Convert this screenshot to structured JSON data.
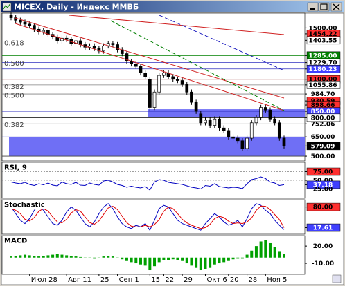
{
  "window": {
    "title": "MICEX, Daily - Индекс ММВБ"
  },
  "chart_data": [
    {
      "type": "candlestick",
      "categories": [
        null,
        null,
        null,
        null,
        "Июл 28",
        null,
        null,
        null,
        null,
        null,
        null,
        null,
        "Авг 11",
        null,
        null,
        null,
        null,
        null,
        null,
        "25",
        null,
        null,
        null,
        "Сен 1",
        null,
        null,
        null,
        null,
        null,
        null,
        "15",
        null,
        null,
        "22",
        null,
        null,
        null,
        "29",
        null,
        null,
        null,
        null,
        "Окт 6",
        null,
        null,
        null,
        null,
        "20",
        null,
        null,
        null,
        "28",
        null,
        null,
        null,
        "Ноя 5",
        null,
        null,
        null,
        null
      ],
      "open": [
        1600,
        1580,
        1560,
        1545,
        1530,
        1520,
        1490,
        1470,
        1480,
        1450,
        1430,
        1400,
        1420,
        1410,
        1380,
        1400,
        1370,
        1350,
        1360,
        1340,
        1320,
        1360,
        1380,
        1370,
        1330,
        1300,
        1240,
        1220,
        1200,
        1150,
        1100,
        880,
        1000,
        1130,
        1150,
        1120,
        1100,
        1090,
        1060,
        1000,
        920,
        830,
        760,
        780,
        740,
        790,
        720,
        700,
        650,
        640,
        620,
        560,
        640,
        760,
        800,
        880,
        860,
        790,
        760,
        640
      ],
      "high": [
        1620,
        1600,
        1580,
        1565,
        1550,
        1540,
        1510,
        1500,
        1500,
        1470,
        1450,
        1440,
        1440,
        1430,
        1420,
        1420,
        1390,
        1380,
        1380,
        1360,
        1380,
        1400,
        1400,
        1390,
        1350,
        1320,
        1260,
        1240,
        1220,
        1170,
        1120,
        1020,
        1150,
        1170,
        1170,
        1140,
        1120,
        1110,
        1080,
        1020,
        940,
        850,
        800,
        800,
        810,
        810,
        740,
        720,
        670,
        660,
        640,
        660,
        780,
        820,
        900,
        900,
        880,
        810,
        780,
        660
      ],
      "low": [
        1560,
        1540,
        1525,
        1510,
        1500,
        1470,
        1450,
        1450,
        1430,
        1410,
        1380,
        1380,
        1390,
        1360,
        1360,
        1350,
        1330,
        1330,
        1320,
        1300,
        1300,
        1340,
        1350,
        1310,
        1280,
        1220,
        1200,
        1180,
        1130,
        1100,
        850,
        860,
        980,
        1110,
        1100,
        1080,
        1070,
        1040,
        980,
        900,
        830,
        740,
        740,
        720,
        720,
        700,
        680,
        630,
        620,
        600,
        540,
        540,
        620,
        740,
        780,
        840,
        770,
        740,
        620,
        560
      ],
      "close": [
        1580,
        1560,
        1545,
        1530,
        1520,
        1490,
        1470,
        1480,
        1450,
        1430,
        1400,
        1420,
        1410,
        1380,
        1400,
        1370,
        1350,
        1360,
        1340,
        1320,
        1360,
        1380,
        1370,
        1330,
        1300,
        1240,
        1220,
        1200,
        1150,
        1120,
        880,
        1000,
        1130,
        1150,
        1120,
        1100,
        1090,
        1060,
        1000,
        920,
        850,
        760,
        780,
        740,
        790,
        720,
        700,
        650,
        640,
        620,
        560,
        640,
        760,
        800,
        880,
        860,
        790,
        760,
        640,
        579
      ],
      "up_color": "#ffffff",
      "down_color": "#000000",
      "ylim": [
        468,
        1610
      ],
      "yticks": [
        {
          "value": 1500,
          "label": "1500.00"
        },
        {
          "value": 1454.22,
          "label": "1454.22",
          "bg": "#ff3030"
        },
        {
          "value": 1403.55,
          "label": "1403.55",
          "bg": "#ffffff"
        },
        {
          "value": 1285,
          "label": "1285.00",
          "bg": "#008000",
          "line": "#008000"
        },
        {
          "value": 1229.7,
          "label": "1229.70",
          "bg": "#ffffff",
          "line": "#3030c0"
        },
        {
          "value": 1180.23,
          "label": "1180.23",
          "bg": "#4040ff",
          "line": "#3030c0"
        },
        {
          "value": 1100,
          "label": "1100.00",
          "bg": "#ff3030",
          "line": "#800000"
        },
        {
          "value": 1055.86,
          "label": "1055.86",
          "bg": "#ffffff",
          "line": "#808080"
        },
        {
          "value": 984.7,
          "label": "984.70",
          "line": "#808080"
        },
        {
          "value": 930.59,
          "label": "930.59",
          "bg": "#ff3030"
        },
        {
          "value": 898.66,
          "label": "898.66",
          "bg": "#ff3030"
        },
        {
          "value": 850,
          "label": "850.00",
          "bg": "#4040ff",
          "line": "#3030c0"
        },
        {
          "value": 800,
          "label": "800.00",
          "bg": "#ffffff",
          "line": "#000000"
        },
        {
          "value": 752.06,
          "label": "752.06",
          "line": "#808080"
        },
        {
          "value": 650,
          "label": "650.00",
          "line": "#3030c0"
        },
        {
          "value": 579.09,
          "label": "579.09",
          "bg": "#000000"
        },
        {
          "value": 500,
          "label": "500.00",
          "line": "#404040"
        }
      ],
      "zones": [
        {
          "range": [
            800,
            866
          ],
          "start": 30,
          "color": "#6f6ff5"
        },
        {
          "range": [
            500,
            650
          ],
          "start": 0,
          "color": "#6f6ff5"
        }
      ],
      "fib_labels": [
        {
          "text": "0.618",
          "price": 1355
        },
        {
          "text": "0.500",
          "price": 1194
        },
        {
          "text": "0.382",
          "price": 1011
        },
        {
          "text": "0.500",
          "price": 946
        },
        {
          "text": "0.382",
          "price": 715
        }
      ]
    },
    {
      "type": "line",
      "title": "RSI, 9",
      "color": "#0000c0",
      "values": [
        45,
        42,
        40,
        44,
        38,
        35,
        40,
        37,
        42,
        36,
        34,
        45,
        40,
        38,
        44,
        36,
        35,
        42,
        38,
        36,
        48,
        50,
        45,
        38,
        35,
        30,
        33,
        30,
        28,
        32,
        22,
        45,
        52,
        50,
        44,
        42,
        40,
        38,
        34,
        30,
        28,
        25,
        35,
        33,
        40,
        32,
        30,
        28,
        30,
        29,
        26,
        40,
        52,
        55,
        60,
        55,
        45,
        42,
        35,
        37.18
      ],
      "ylim": [
        0,
        100
      ],
      "yticks": [
        {
          "value": 75,
          "label": "75.00",
          "bg": "#ff3030",
          "line": "#808080",
          "dashed": true
        },
        {
          "value": 50,
          "label": "50.00",
          "line": "#808080",
          "dashed": true
        },
        {
          "value": 37.18,
          "label": "37.18",
          "bg": "#4040ff"
        },
        {
          "value": 25,
          "label": "25.00",
          "line": "#808080",
          "dashed": true
        }
      ]
    },
    {
      "type": "line",
      "title": "Stochastic",
      "series": [
        {
          "color": "#0000c0",
          "values": [
            80,
            60,
            40,
            30,
            45,
            70,
            85,
            70,
            50,
            30,
            25,
            40,
            65,
            80,
            70,
            50,
            30,
            20,
            35,
            60,
            80,
            90,
            75,
            50,
            30,
            20,
            15,
            25,
            20,
            30,
            10,
            40,
            75,
            85,
            80,
            60,
            40,
            30,
            25,
            20,
            15,
            10,
            30,
            45,
            60,
            50,
            35,
            25,
            30,
            40,
            20,
            45,
            75,
            90,
            85,
            70,
            60,
            40,
            25,
            12
          ]
        },
        {
          "color": "#e00000",
          "values": [
            75,
            70,
            60,
            43,
            38,
            48,
            67,
            75,
            68,
            50,
            35,
            32,
            43,
            62,
            72,
            67,
            50,
            33,
            28,
            38,
            58,
            77,
            82,
            72,
            52,
            33,
            22,
            20,
            20,
            25,
            20,
            27,
            42,
            67,
            80,
            75,
            60,
            43,
            32,
            25,
            20,
            15,
            18,
            28,
            45,
            52,
            48,
            37,
            30,
            32,
            30,
            35,
            47,
            70,
            83,
            82,
            72,
            57,
            42,
            17.61
          ]
        }
      ],
      "ylim": [
        0,
        100
      ],
      "yticks": [
        {
          "value": 80,
          "label": "80.00",
          "bg": "#ff3030",
          "line": "#e00000",
          "dashed": true
        },
        {
          "value": 17.61,
          "label": "17.61",
          "bg": "#4040ff"
        }
      ]
    },
    {
      "type": "bar",
      "title": "MACD",
      "color": "#00a000",
      "values": [
        2,
        3,
        4,
        5,
        4,
        3,
        2,
        3,
        4,
        5,
        6,
        5,
        4,
        3,
        2,
        1,
        0,
        -1,
        -2,
        -1,
        2,
        3,
        2,
        0,
        -3,
        -6,
        -8,
        -10,
        -12,
        -14,
        -22,
        -15,
        -8,
        -5,
        -4,
        -3,
        -4,
        -6,
        -10,
        -14,
        -18,
        -22,
        -20,
        -18,
        -12,
        -10,
        -8,
        -6,
        -3,
        -2,
        -2,
        5,
        12,
        20,
        28,
        30,
        25,
        18,
        10,
        6
      ],
      "ylim": [
        -28,
        37
      ],
      "yticks": [
        {
          "value": 20,
          "label": "20.00"
        },
        {
          "value": -10,
          "label": "-10.00"
        }
      ]
    }
  ]
}
